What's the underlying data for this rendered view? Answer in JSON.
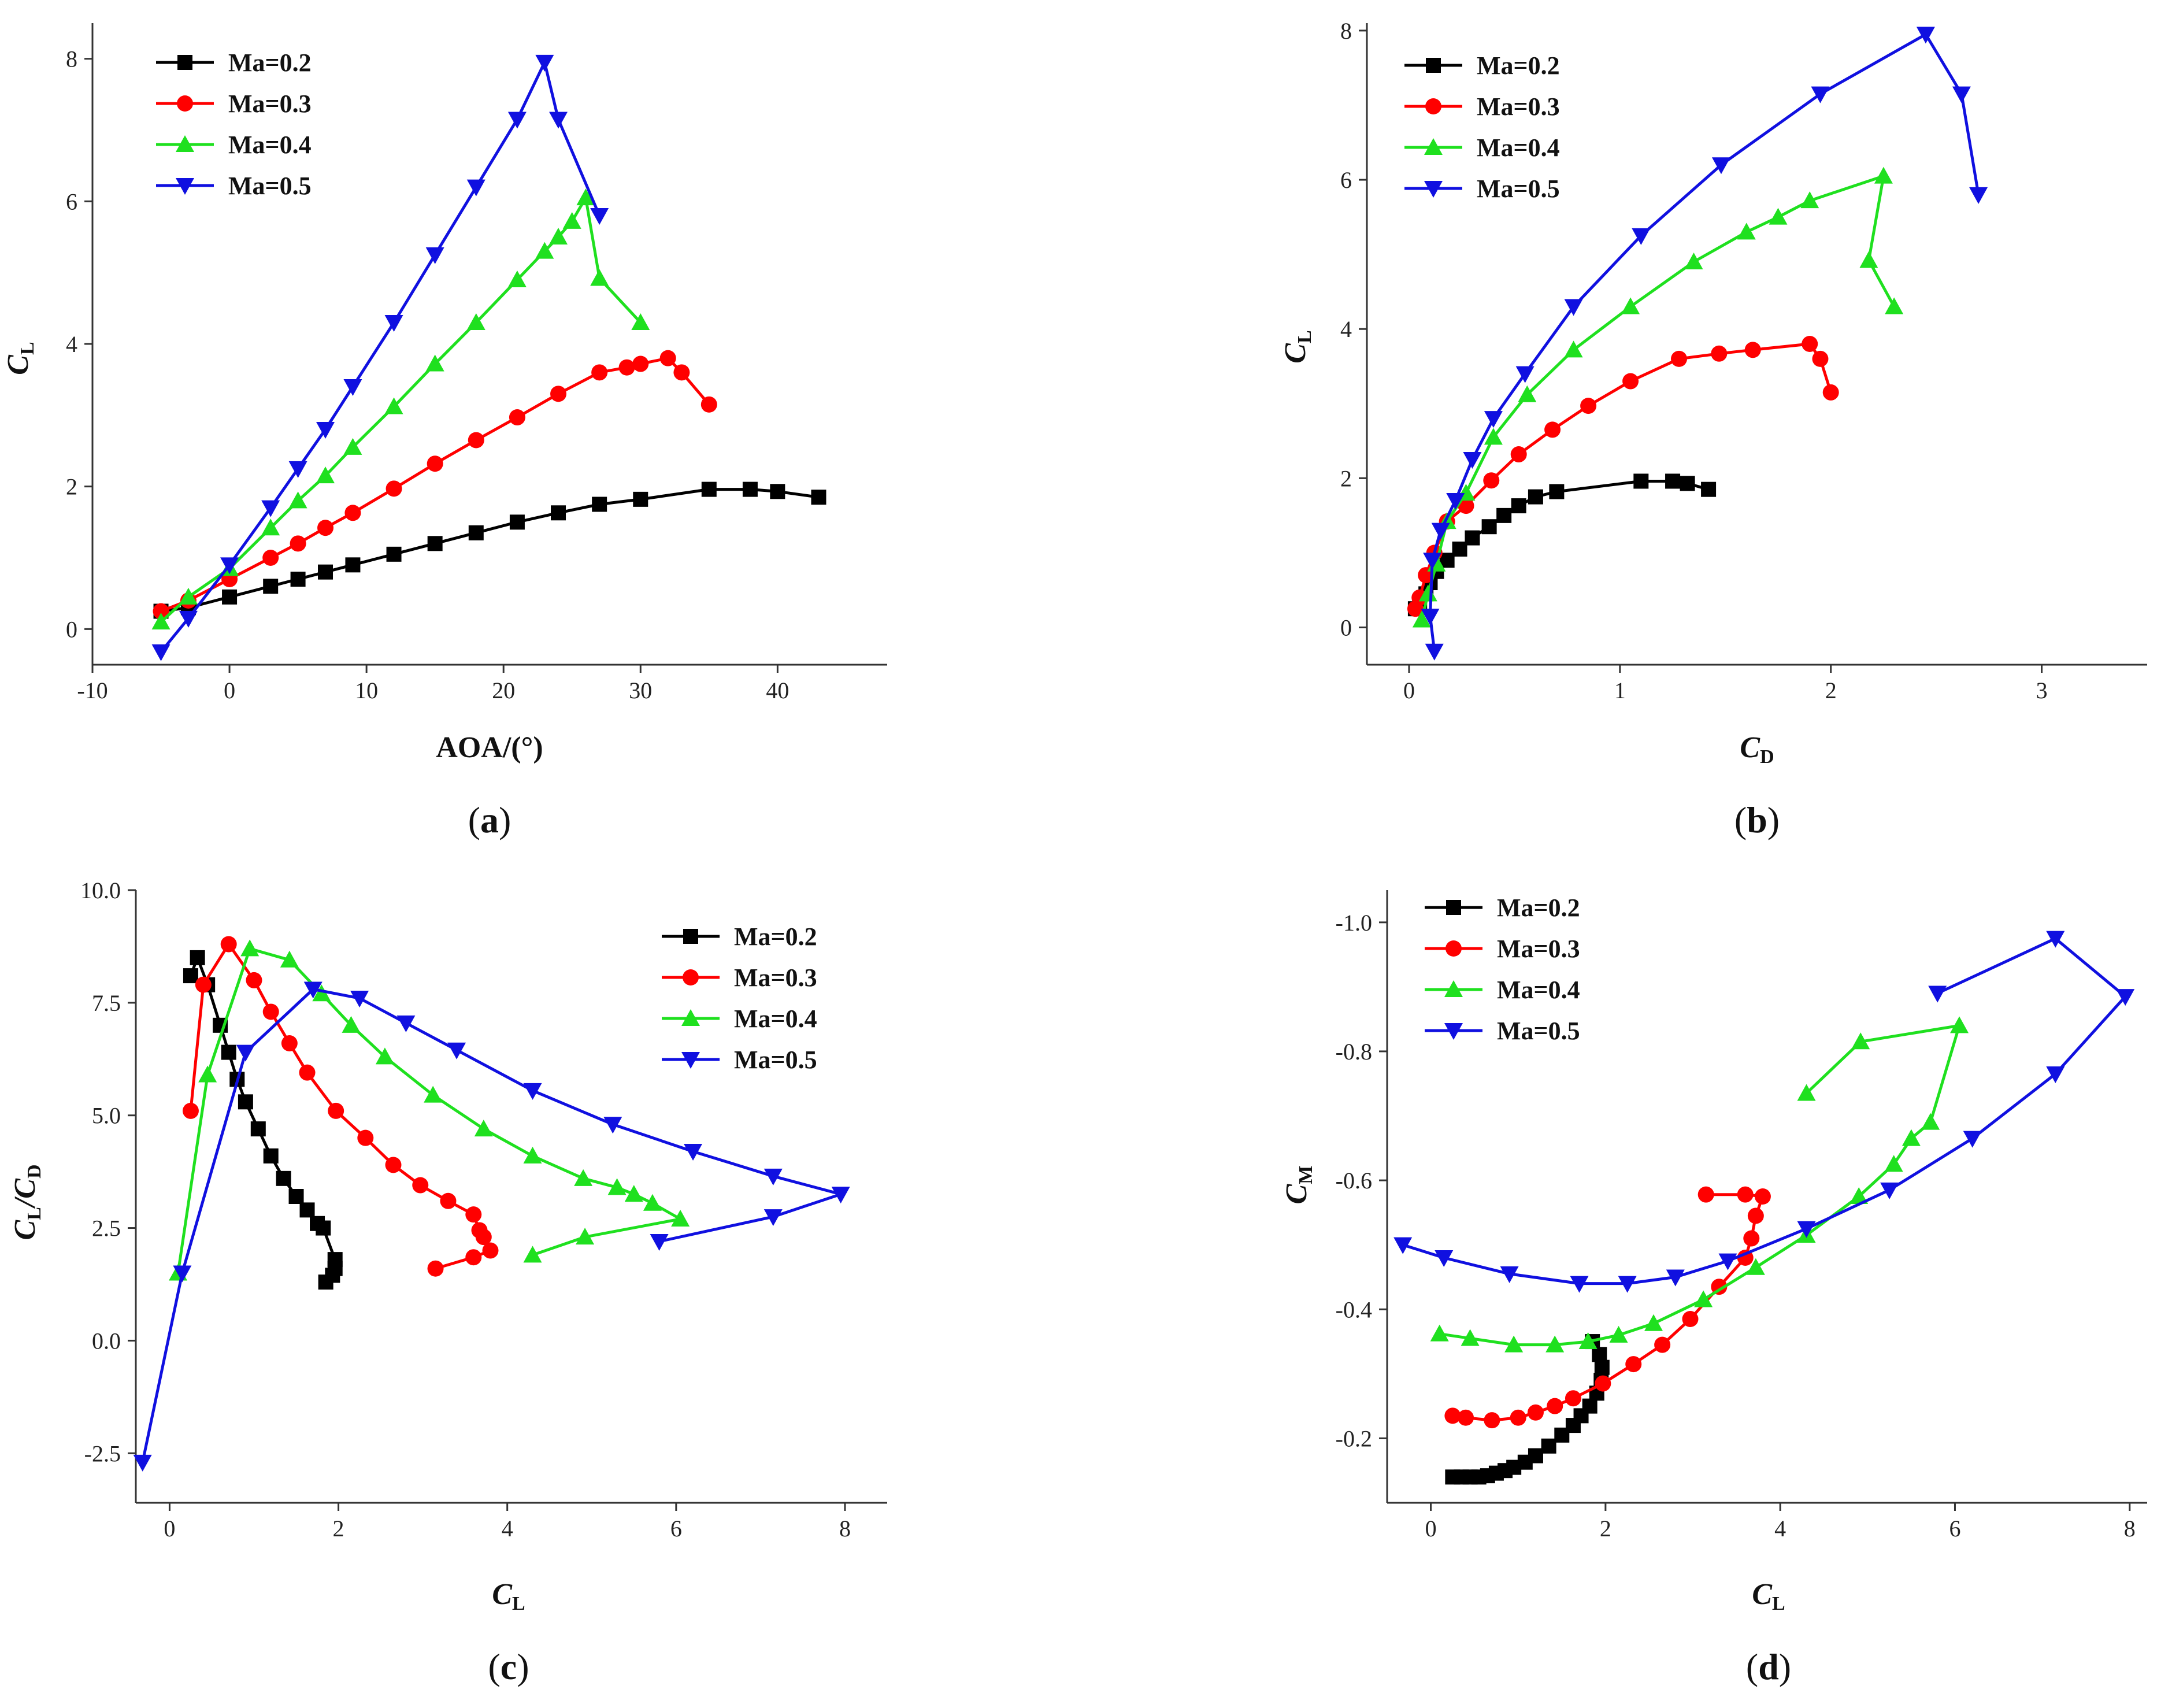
{
  "series_meta": [
    {
      "name": "Ma=0.2",
      "color": "#000000",
      "marker": "square"
    },
    {
      "name": "Ma=0.3",
      "color": "#ff0000",
      "marker": "circle"
    },
    {
      "name": "Ma=0.4",
      "color": "#1fe01f",
      "marker": "triangle-up"
    },
    {
      "name": "Ma=0.5",
      "color": "#1010e0",
      "marker": "triangle-down"
    }
  ],
  "chart_data": [
    {
      "panel": "a",
      "type": "line",
      "xlabel": "AOA/(°)",
      "ylabel": {
        "main": "C",
        "sub": "L"
      },
      "xlim": [
        -10,
        48
      ],
      "ylim": [
        -0.5,
        8.5
      ],
      "xticks": [
        -10,
        0,
        10,
        20,
        30,
        40
      ],
      "yticks": [
        0,
        2,
        4,
        6,
        8
      ],
      "legend": "top-left",
      "series": [
        {
          "name": "Ma=0.2",
          "x": [
            -5,
            -3,
            0,
            3,
            5,
            7,
            9,
            12,
            15,
            18,
            21,
            24,
            27,
            30,
            35,
            38,
            40,
            43
          ],
          "y": [
            0.25,
            0.3,
            0.45,
            0.6,
            0.7,
            0.8,
            0.9,
            1.05,
            1.2,
            1.35,
            1.5,
            1.63,
            1.75,
            1.82,
            1.96,
            1.96,
            1.93,
            1.85
          ]
        },
        {
          "name": "Ma=0.3",
          "x": [
            -5,
            -3,
            0,
            3,
            5,
            7,
            9,
            12,
            15,
            18,
            21,
            24,
            27,
            29,
            30,
            32,
            33,
            35
          ],
          "y": [
            0.25,
            0.4,
            0.7,
            1.0,
            1.2,
            1.42,
            1.63,
            1.97,
            2.32,
            2.65,
            2.97,
            3.3,
            3.6,
            3.67,
            3.72,
            3.8,
            3.6,
            3.15
          ]
        },
        {
          "name": "Ma=0.4",
          "x": [
            -5,
            -3,
            0,
            3,
            5,
            7,
            9,
            12,
            15,
            18,
            21,
            23,
            24,
            25,
            26,
            27,
            30
          ],
          "y": [
            0.1,
            0.45,
            0.85,
            1.42,
            1.8,
            2.15,
            2.55,
            3.12,
            3.72,
            4.3,
            4.9,
            5.3,
            5.5,
            5.72,
            6.05,
            4.92,
            4.3
          ]
        },
        {
          "name": "Ma=0.5",
          "x": [
            -5,
            -3,
            0,
            3,
            5,
            7,
            9,
            12,
            15,
            18,
            21,
            23,
            24,
            27
          ],
          "y": [
            -0.32,
            0.15,
            0.9,
            1.7,
            2.25,
            2.8,
            3.4,
            4.3,
            5.25,
            6.2,
            7.15,
            7.95,
            7.15,
            5.8
          ]
        }
      ]
    },
    {
      "panel": "b",
      "type": "line",
      "xlabel": {
        "main": "C",
        "sub": "D"
      },
      "ylabel": {
        "main": "C",
        "sub": "L"
      },
      "xlim": [
        -0.2,
        3.5
      ],
      "ylim": [
        -0.5,
        8.1
      ],
      "xticks": [
        0,
        1,
        2,
        3
      ],
      "yticks": [
        0,
        2,
        4,
        6,
        8
      ],
      "legend": "top-left",
      "series": [
        {
          "name": "Ma=0.2",
          "x": [
            0.03,
            0.05,
            0.08,
            0.1,
            0.13,
            0.18,
            0.24,
            0.3,
            0.38,
            0.45,
            0.52,
            0.6,
            0.7,
            1.1,
            1.25,
            1.32,
            1.42
          ],
          "y": [
            0.25,
            0.3,
            0.45,
            0.6,
            0.75,
            0.9,
            1.05,
            1.2,
            1.35,
            1.5,
            1.63,
            1.75,
            1.82,
            1.96,
            1.96,
            1.93,
            1.85
          ]
        },
        {
          "name": "Ma=0.3",
          "x": [
            0.03,
            0.05,
            0.08,
            0.12,
            0.18,
            0.27,
            0.39,
            0.52,
            0.68,
            0.85,
            1.05,
            1.28,
            1.47,
            1.63,
            1.9,
            1.95,
            2.0
          ],
          "y": [
            0.25,
            0.4,
            0.7,
            1.0,
            1.42,
            1.63,
            1.97,
            2.32,
            2.65,
            2.97,
            3.3,
            3.6,
            3.67,
            3.72,
            3.8,
            3.6,
            3.15
          ]
        },
        {
          "name": "Ma=0.4",
          "x": [
            0.06,
            0.09,
            0.13,
            0.18,
            0.27,
            0.4,
            0.56,
            0.78,
            1.05,
            1.35,
            1.6,
            1.75,
            1.9,
            2.25,
            2.18,
            2.3
          ],
          "y": [
            0.1,
            0.45,
            0.85,
            1.42,
            1.8,
            2.55,
            3.12,
            3.72,
            4.3,
            4.9,
            5.3,
            5.5,
            5.72,
            6.05,
            4.92,
            4.3
          ]
        },
        {
          "name": "Ma=0.5",
          "x": [
            0.12,
            0.1,
            0.11,
            0.15,
            0.22,
            0.3,
            0.4,
            0.55,
            0.78,
            1.1,
            1.48,
            1.95,
            2.45,
            2.62,
            2.7
          ],
          "y": [
            -0.32,
            0.15,
            0.9,
            1.3,
            1.7,
            2.25,
            2.8,
            3.4,
            4.3,
            5.25,
            6.2,
            7.15,
            7.95,
            7.15,
            5.8
          ]
        }
      ]
    },
    {
      "panel": "c",
      "type": "line",
      "xlabel": {
        "main": "C",
        "sub": "L"
      },
      "ylabel": {
        "main": "C",
        "sub": "L",
        "mid": "/C",
        "sub2": "D"
      },
      "xlim": [
        -0.4,
        8.5
      ],
      "ylim": [
        -3.6,
        10.0
      ],
      "xticks": [
        0,
        2,
        4,
        6,
        8
      ],
      "yticks": [
        -2.5,
        0.0,
        2.5,
        5.0,
        7.5,
        10.0
      ],
      "ytick_labels": [
        "-2.5",
        "0.0",
        "2.5",
        "5.0",
        "7.5",
        "10.0"
      ],
      "legend": "top-right",
      "series": [
        {
          "name": "Ma=0.2",
          "x": [
            0.25,
            0.33,
            0.45,
            0.6,
            0.7,
            0.8,
            0.9,
            1.05,
            1.2,
            1.35,
            1.5,
            1.63,
            1.75,
            1.82,
            1.96,
            1.96,
            1.93,
            1.85
          ],
          "y": [
            8.1,
            8.5,
            7.9,
            7.0,
            6.4,
            5.8,
            5.3,
            4.7,
            4.1,
            3.6,
            3.2,
            2.9,
            2.6,
            2.5,
            1.8,
            1.6,
            1.45,
            1.3
          ]
        },
        {
          "name": "Ma=0.3",
          "x": [
            0.25,
            0.4,
            0.7,
            1.0,
            1.2,
            1.42,
            1.63,
            1.97,
            2.32,
            2.65,
            2.97,
            3.3,
            3.6,
            3.67,
            3.72,
            3.8,
            3.6,
            3.15
          ],
          "y": [
            5.1,
            7.9,
            8.8,
            8.0,
            7.3,
            6.6,
            5.95,
            5.1,
            4.5,
            3.9,
            3.45,
            3.1,
            2.8,
            2.45,
            2.3,
            2.0,
            1.85,
            1.6
          ]
        },
        {
          "name": "Ma=0.4",
          "x": [
            0.1,
            0.45,
            0.95,
            1.42,
            1.8,
            2.15,
            2.55,
            3.12,
            3.72,
            4.3,
            4.9,
            5.3,
            5.5,
            5.72,
            6.05,
            4.92,
            4.3
          ],
          "y": [
            1.5,
            5.9,
            8.7,
            8.45,
            7.7,
            7.0,
            6.3,
            5.45,
            4.7,
            4.1,
            3.6,
            3.4,
            3.25,
            3.05,
            2.7,
            2.3,
            1.9
          ]
        },
        {
          "name": "Ma=0.5",
          "x": [
            -0.32,
            0.15,
            0.9,
            1.7,
            2.25,
            2.8,
            3.4,
            4.3,
            5.25,
            6.2,
            7.15,
            7.95,
            7.15,
            5.8
          ],
          "y": [
            -2.7,
            1.5,
            6.4,
            7.8,
            7.6,
            7.05,
            6.45,
            5.55,
            4.8,
            4.2,
            3.65,
            3.25,
            2.75,
            2.2
          ]
        }
      ]
    },
    {
      "panel": "d",
      "type": "line",
      "xlabel": {
        "main": "C",
        "sub": "L"
      },
      "ylabel": {
        "main": "C",
        "sub": "M"
      },
      "xlim": [
        -0.5,
        8.2
      ],
      "ylim": [
        -0.1,
        -1.05
      ],
      "xticks": [
        0,
        2,
        4,
        6,
        8
      ],
      "yticks": [
        -0.2,
        -0.4,
        -0.6,
        -0.8,
        -1.0
      ],
      "ytick_labels": [
        "-0.2",
        "-0.4",
        "-0.6",
        "-0.8",
        "-1.0"
      ],
      "legend": "top-left",
      "series": [
        {
          "name": "Ma=0.2",
          "x": [
            0.25,
            0.35,
            0.45,
            0.55,
            0.65,
            0.75,
            0.85,
            0.95,
            1.08,
            1.2,
            1.35,
            1.5,
            1.63,
            1.72,
            1.82,
            1.9,
            1.95,
            1.96,
            1.93,
            1.85
          ],
          "y": [
            -0.14,
            -0.14,
            -0.14,
            -0.14,
            -0.142,
            -0.146,
            -0.15,
            -0.155,
            -0.163,
            -0.173,
            -0.188,
            -0.205,
            -0.22,
            -0.235,
            -0.25,
            -0.27,
            -0.29,
            -0.31,
            -0.33,
            -0.35
          ]
        },
        {
          "name": "Ma=0.3",
          "x": [
            0.25,
            0.4,
            0.7,
            1.0,
            1.2,
            1.42,
            1.63,
            1.97,
            2.32,
            2.65,
            2.97,
            3.3,
            3.6,
            3.67,
            3.72,
            3.8,
            3.6,
            3.15
          ],
          "y": [
            -0.235,
            -0.232,
            -0.228,
            -0.232,
            -0.24,
            -0.25,
            -0.262,
            -0.285,
            -0.315,
            -0.345,
            -0.385,
            -0.435,
            -0.48,
            -0.51,
            -0.545,
            -0.575,
            -0.578,
            -0.578
          ]
        },
        {
          "name": "Ma=0.4",
          "x": [
            0.1,
            0.45,
            0.95,
            1.42,
            1.8,
            2.15,
            2.55,
            3.12,
            3.72,
            4.3,
            4.9,
            5.3,
            5.5,
            5.72,
            6.05,
            4.92,
            4.3
          ],
          "y": [
            -0.362,
            -0.355,
            -0.345,
            -0.345,
            -0.35,
            -0.36,
            -0.378,
            -0.415,
            -0.465,
            -0.515,
            -0.575,
            -0.625,
            -0.665,
            -0.69,
            -0.84,
            -0.815,
            -0.735
          ]
        },
        {
          "name": "Ma=0.5",
          "x": [
            -0.32,
            0.15,
            0.9,
            1.7,
            2.25,
            2.8,
            3.4,
            4.3,
            5.25,
            6.2,
            7.15,
            7.95,
            7.15,
            5.8
          ],
          "y": [
            -0.5,
            -0.48,
            -0.455,
            -0.44,
            -0.44,
            -0.45,
            -0.475,
            -0.525,
            -0.585,
            -0.665,
            -0.765,
            -0.885,
            -0.975,
            -0.89
          ]
        }
      ]
    }
  ],
  "panels": [
    {
      "label_open": "(",
      "label_letter": "a",
      "label_close": ")"
    },
    {
      "label_open": "(",
      "label_letter": "b",
      "label_close": ")"
    },
    {
      "label_open": "(",
      "label_letter": "c",
      "label_close": ")"
    },
    {
      "label_open": "(",
      "label_letter": "d",
      "label_close": ")"
    }
  ]
}
